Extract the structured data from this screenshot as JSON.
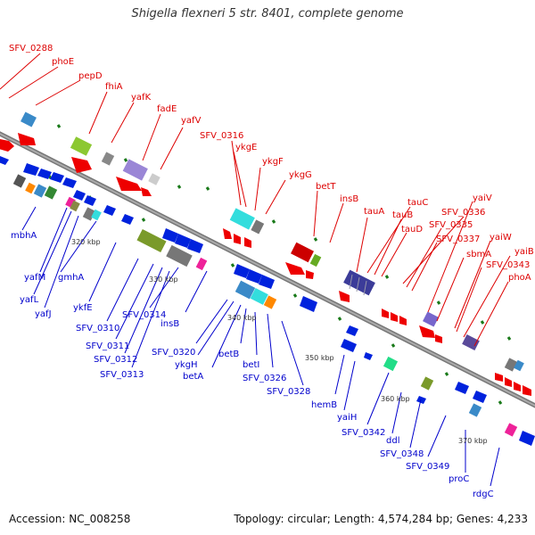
{
  "title": "Shigella flexneri 5 str. 8401, complete genome",
  "accession": "Accession: NC_008258",
  "summary": "Topology: circular; Length: 4,574,284 bp; Genes: 4,233",
  "kbp_labels": [
    "320 kbp",
    "330 kbp",
    "340 kbp",
    "350 kbp",
    "360 kbp",
    "370 kbp"
  ],
  "top_genes": [
    "SFV_0288",
    "phoE",
    "pepD",
    "fhiA",
    "yafK",
    "fadE",
    "yafV",
    "SFV_0316",
    "ykgE",
    "ykgF",
    "ykgG",
    "betT",
    "insB",
    "tauA",
    "tauB",
    "tauC",
    "tauD",
    "SFV_0336",
    "SFV_0335",
    "SFV_0337",
    "yaiV",
    "sbmA",
    "yaiW",
    "SFV_0343",
    "yaiB",
    "phoA"
  ],
  "bottom_genes": [
    "mbhA",
    "yafM",
    "yafL",
    "yafJ",
    "gmhA",
    "ykfE",
    "SFV_0310",
    "SFV_0311",
    "SFV_0312",
    "SFV_0313",
    "SFV_0314",
    "insB",
    "SFV_0320",
    "ykgH",
    "betA",
    "betB",
    "betI",
    "SFV_0326",
    "SFV_0328",
    "hemB",
    "yaiH",
    "SFV_0342",
    "ddl",
    "SFV_0348",
    "SFV_0349",
    "proC",
    "rdgC"
  ],
  "colors": {
    "top_label": "#dd0000",
    "bottom_label": "#0000cc",
    "backbone": "#888888",
    "tick": "#1a7a1a"
  }
}
